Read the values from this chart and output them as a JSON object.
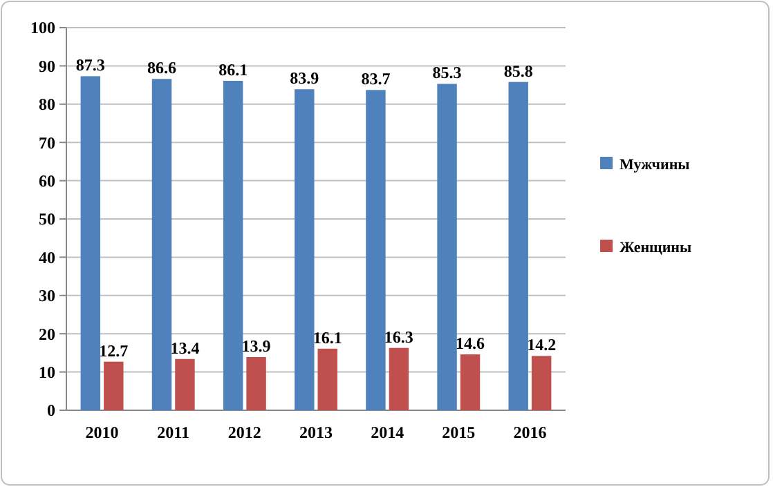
{
  "chart_data": {
    "type": "bar",
    "categories": [
      "2010",
      "2011",
      "2012",
      "2013",
      "2014",
      "2015",
      "2016"
    ],
    "series": [
      {
        "name": "Мужчины",
        "color": "#4f81bd",
        "values": [
          87.3,
          86.6,
          86.1,
          83.9,
          83.7,
          85.3,
          85.8
        ]
      },
      {
        "name": "Женщины",
        "color": "#c0504d",
        "values": [
          12.7,
          13.4,
          13.9,
          16.1,
          16.3,
          14.6,
          14.2
        ]
      }
    ],
    "ylim": [
      0,
      100
    ],
    "yticks": [
      0,
      10,
      20,
      30,
      40,
      50,
      60,
      70,
      80,
      90,
      100
    ],
    "grid": "y",
    "legend": "right",
    "data_labels": true
  }
}
